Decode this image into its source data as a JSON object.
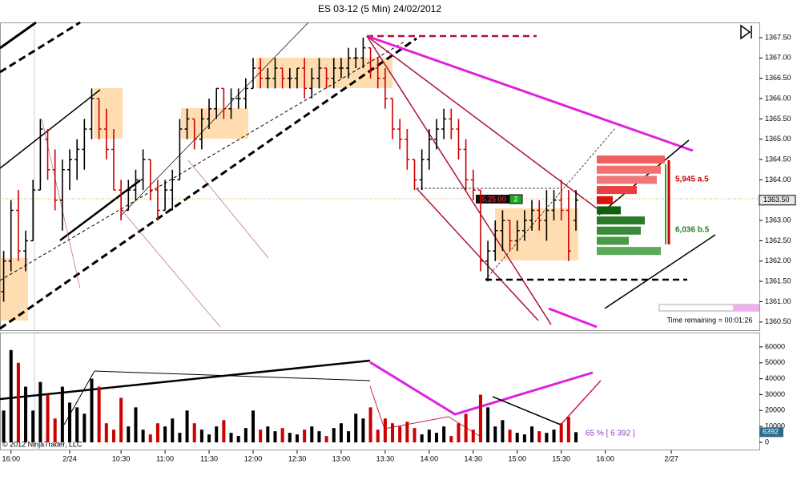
{
  "chart_data": {
    "type": "ohlc",
    "title": "ES 03-12 (5 Min)  24/02/2012",
    "xlim": [
      -0.5,
      103
    ],
    "xticks": [
      {
        "value": 1,
        "label": "16:00"
      },
      {
        "value": 9,
        "label": "2/24"
      },
      {
        "value": 16,
        "label": "10:30"
      },
      {
        "value": 22,
        "label": "11:00"
      },
      {
        "value": 28,
        "label": "11:30"
      },
      {
        "value": 34,
        "label": "12:00"
      },
      {
        "value": 40,
        "label": "12:30"
      },
      {
        "value": 46,
        "label": "13:00"
      },
      {
        "value": 52,
        "label": "13:30"
      },
      {
        "value": 58,
        "label": "14:00"
      },
      {
        "value": 64,
        "label": "14:30"
      },
      {
        "value": 70,
        "label": "15:00"
      },
      {
        "value": 76,
        "label": "15:30"
      },
      {
        "value": 82,
        "label": "16:00"
      },
      {
        "value": 91,
        "label": "2/27"
      }
    ],
    "ylim": [
      1360.3,
      1367.875
    ],
    "yticks": [
      {
        "value": 1360.5,
        "label": "1360.50"
      },
      {
        "value": 1361,
        "label": "1361.00"
      },
      {
        "value": 1361.5,
        "label": "1361.50"
      },
      {
        "value": 1362,
        "label": "1362.00"
      },
      {
        "value": 1362.5,
        "label": "1362.50"
      },
      {
        "value": 1363,
        "label": "1363.00"
      },
      {
        "value": 1363.5,
        "label": "1363.50"
      },
      {
        "value": 1364,
        "label": "1364.00"
      },
      {
        "value": 1364.5,
        "label": "1364.50"
      },
      {
        "value": 1365,
        "label": "1365.00"
      },
      {
        "value": 1365.5,
        "label": "1365.50"
      },
      {
        "value": 1366,
        "label": "1366.00"
      },
      {
        "value": 1366.5,
        "label": "1366.50"
      },
      {
        "value": 1367,
        "label": "1367.00"
      },
      {
        "value": 1367.5,
        "label": "1367.50"
      }
    ],
    "up_color": "#000000",
    "down_color": "#cc0000",
    "open": [
      1361.25,
      1362.0,
      1363.25,
      1362.25,
      1362.5,
      1363.75,
      1365.0,
      1364.25,
      1363.5,
      1364.25,
      1364.5,
      1364.75,
      1365.25,
      1366.0,
      1365.25,
      1364.75,
      1363.75,
      1363.25,
      1363.75,
      1364.0,
      1364.5,
      1363.75,
      1363.25,
      1363.75,
      1364.0,
      1365.25,
      1365.5,
      1365.0,
      1365.5,
      1365.75,
      1366.25,
      1365.75,
      1366.0,
      1366.0,
      1366.25,
      1366.75,
      1366.5,
      1366.5,
      1366.75,
      1366.5,
      1366.5,
      1366.75,
      1366.25,
      1366.5,
      1366.75,
      1366.5,
      1366.75,
      1366.75,
      1367.0,
      1367.0,
      1367.25,
      1366.75,
      1366.5,
      1366.0,
      1365.25,
      1365.0,
      1364.5,
      1364.0,
      1364.5,
      1365.0,
      1365.25,
      1365.5,
      1365.25,
      1364.75,
      1364.0,
      1363.75,
      1362.0,
      1362.25,
      1362.75,
      1363.0,
      1362.5,
      1362.75,
      1363.0,
      1363.25,
      1363.0,
      1363.25,
      1363.5,
      1363.25,
      1363.0
    ],
    "high": [
      1362.25,
      1363.5,
      1363.75,
      1362.75,
      1364.0,
      1365.5,
      1365.25,
      1364.75,
      1364.5,
      1364.75,
      1365.0,
      1365.5,
      1366.25,
      1366.0,
      1365.75,
      1365.25,
      1364.0,
      1364.0,
      1364.25,
      1364.75,
      1364.5,
      1364.0,
      1364.0,
      1364.25,
      1365.5,
      1365.75,
      1365.5,
      1365.75,
      1366.0,
      1366.25,
      1366.25,
      1366.25,
      1366.25,
      1366.5,
      1367.0,
      1367.0,
      1366.75,
      1367.0,
      1366.75,
      1366.75,
      1366.75,
      1367.0,
      1366.75,
      1367.0,
      1366.75,
      1367.0,
      1367.0,
      1367.25,
      1367.25,
      1367.5,
      1367.25,
      1367.0,
      1366.75,
      1366.0,
      1365.5,
      1365.25,
      1364.5,
      1364.75,
      1365.25,
      1365.5,
      1365.75,
      1365.75,
      1365.5,
      1365.0,
      1364.25,
      1363.75,
      1362.5,
      1363.0,
      1363.25,
      1363.0,
      1363.0,
      1363.25,
      1363.5,
      1363.5,
      1363.75,
      1363.75,
      1364.0,
      1363.75,
      1363.75
    ],
    "low": [
      1361.0,
      1361.75,
      1362.0,
      1361.75,
      1362.5,
      1363.75,
      1364.0,
      1363.25,
      1362.75,
      1363.75,
      1364.0,
      1364.25,
      1365.0,
      1365.0,
      1364.5,
      1363.75,
      1363.0,
      1363.25,
      1363.5,
      1363.75,
      1363.5,
      1363.0,
      1363.25,
      1363.25,
      1364.0,
      1365.0,
      1364.75,
      1364.75,
      1365.25,
      1365.5,
      1365.5,
      1365.5,
      1365.75,
      1365.75,
      1366.25,
      1366.25,
      1366.25,
      1366.25,
      1366.25,
      1366.25,
      1366.25,
      1366.0,
      1366.0,
      1366.25,
      1366.25,
      1366.25,
      1366.5,
      1366.5,
      1366.75,
      1366.75,
      1366.5,
      1366.25,
      1365.75,
      1365.0,
      1364.75,
      1364.25,
      1363.75,
      1363.75,
      1364.25,
      1364.75,
      1365.0,
      1365.0,
      1364.5,
      1363.75,
      1363.5,
      1361.75,
      1361.5,
      1362.0,
      1362.25,
      1362.25,
      1362.25,
      1362.5,
      1362.75,
      1362.75,
      1362.5,
      1363.0,
      1363.0,
      1362.0,
      1362.75
    ],
    "close": [
      1362.0,
      1363.25,
      1362.25,
      1362.5,
      1363.75,
      1365.25,
      1364.25,
      1363.5,
      1364.25,
      1364.5,
      1364.75,
      1365.25,
      1366.0,
      1365.25,
      1364.75,
      1363.75,
      1363.25,
      1363.75,
      1364.0,
      1364.5,
      1363.75,
      1363.25,
      1363.75,
      1364.0,
      1365.25,
      1365.5,
      1365.0,
      1365.5,
      1365.75,
      1366.25,
      1365.75,
      1366.0,
      1366.0,
      1366.25,
      1366.75,
      1366.5,
      1366.5,
      1366.75,
      1366.5,
      1366.5,
      1366.75,
      1366.25,
      1366.5,
      1366.75,
      1366.5,
      1366.75,
      1366.75,
      1367.0,
      1367.0,
      1367.25,
      1366.75,
      1366.5,
      1366.0,
      1365.25,
      1365.0,
      1364.5,
      1364.0,
      1364.5,
      1365.0,
      1365.25,
      1365.5,
      1365.25,
      1364.75,
      1364.0,
      1363.75,
      1362.0,
      1362.25,
      1362.75,
      1363.0,
      1362.5,
      1362.75,
      1363.0,
      1363.25,
      1363.0,
      1363.25,
      1363.5,
      1363.25,
      1362.25,
      1363.5
    ],
    "last_price": {
      "value": 1363.5,
      "label": "1363.50"
    },
    "volume": {
      "ylim": [
        -3000,
        67500
      ],
      "yticks": [
        0,
        10000,
        20000,
        30000,
        40000,
        50000,
        60000
      ],
      "values": [
        20000,
        58000,
        50000,
        35000,
        20000,
        38000,
        30000,
        15000,
        35000,
        25000,
        22000,
        18000,
        40000,
        35000,
        12000,
        8000,
        28000,
        10000,
        22000,
        8000,
        5000,
        12000,
        10000,
        15000,
        6000,
        20000,
        12000,
        8000,
        5000,
        10000,
        14000,
        6000,
        4000,
        9000,
        20000,
        8000,
        10000,
        7000,
        9000,
        6000,
        5000,
        8000,
        10000,
        7000,
        4000,
        9000,
        12000,
        7000,
        18000,
        15000,
        22000,
        8000,
        15000,
        12000,
        10000,
        13000,
        9000,
        5000,
        8000,
        6000,
        10000,
        4000,
        12000,
        18000,
        8000,
        30000,
        22000,
        10000,
        14000,
        8000,
        6000,
        5000,
        10000,
        7000,
        6000,
        8000,
        12000,
        16000,
        6392
      ],
      "annotation": "65 % [ 6 392 ]"
    },
    "depth": {
      "ask_prices": [
        1364.5,
        1364.25,
        1364.0,
        1363.75,
        1363.5
      ],
      "ask_sizes": [
        85,
        80,
        75,
        50,
        20
      ],
      "bid_prices": [
        1363.25,
        1363.0,
        1362.75,
        1362.5,
        1362.25
      ],
      "bid_sizes": [
        30,
        60,
        55,
        40,
        80
      ],
      "ask_total": "5,945 a.5",
      "bid_total": "6,036 b.5"
    },
    "position_label": "-5.25 00",
    "position_qty": "2",
    "timer": "Time remaining = 00:01:26",
    "copyright": "© 2012 NinjaTrader, LLC"
  }
}
